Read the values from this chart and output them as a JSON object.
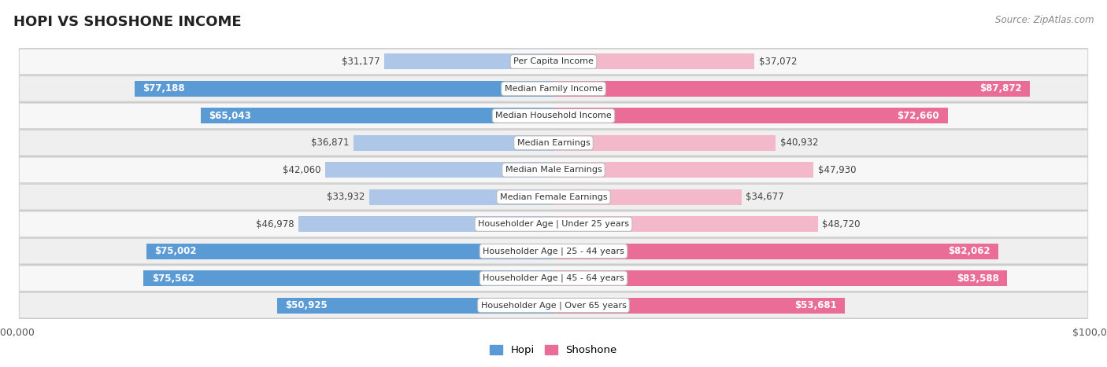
{
  "title": "HOPI VS SHOSHONE INCOME",
  "source": "Source: ZipAtlas.com",
  "categories": [
    "Per Capita Income",
    "Median Family Income",
    "Median Household Income",
    "Median Earnings",
    "Median Male Earnings",
    "Median Female Earnings",
    "Householder Age | Under 25 years",
    "Householder Age | 25 - 44 years",
    "Householder Age | 45 - 64 years",
    "Householder Age | Over 65 years"
  ],
  "hopi_values": [
    31177,
    77188,
    65043,
    36871,
    42060,
    33932,
    46978,
    75002,
    75562,
    50925
  ],
  "shoshone_values": [
    37072,
    87872,
    72660,
    40932,
    47930,
    34677,
    48720,
    82062,
    83588,
    53681
  ],
  "hopi_labels": [
    "$31,177",
    "$77,188",
    "$65,043",
    "$36,871",
    "$42,060",
    "$33,932",
    "$46,978",
    "$75,002",
    "$75,562",
    "$50,925"
  ],
  "shoshone_labels": [
    "$37,072",
    "$87,872",
    "$72,660",
    "$40,932",
    "$47,930",
    "$34,677",
    "$48,720",
    "$82,062",
    "$83,588",
    "$53,681"
  ],
  "hopi_color_light": "#aec6e8",
  "hopi_color_dark": "#5b9bd5",
  "shoshone_color_light": "#f4b8cb",
  "shoshone_color_dark": "#e96d96",
  "max_value": 100000,
  "bar_height": 0.58,
  "title_fontsize": 13,
  "label_fontsize": 8.5,
  "category_fontsize": 8.0,
  "legend_hopi": "Hopi",
  "legend_shoshone": "Shoshone",
  "hopi_threshold": 50000,
  "shoshone_threshold": 50000,
  "row_colors": [
    "#f7f7f7",
    "#efefef"
  ],
  "row_border_color": "#d8d8d8"
}
